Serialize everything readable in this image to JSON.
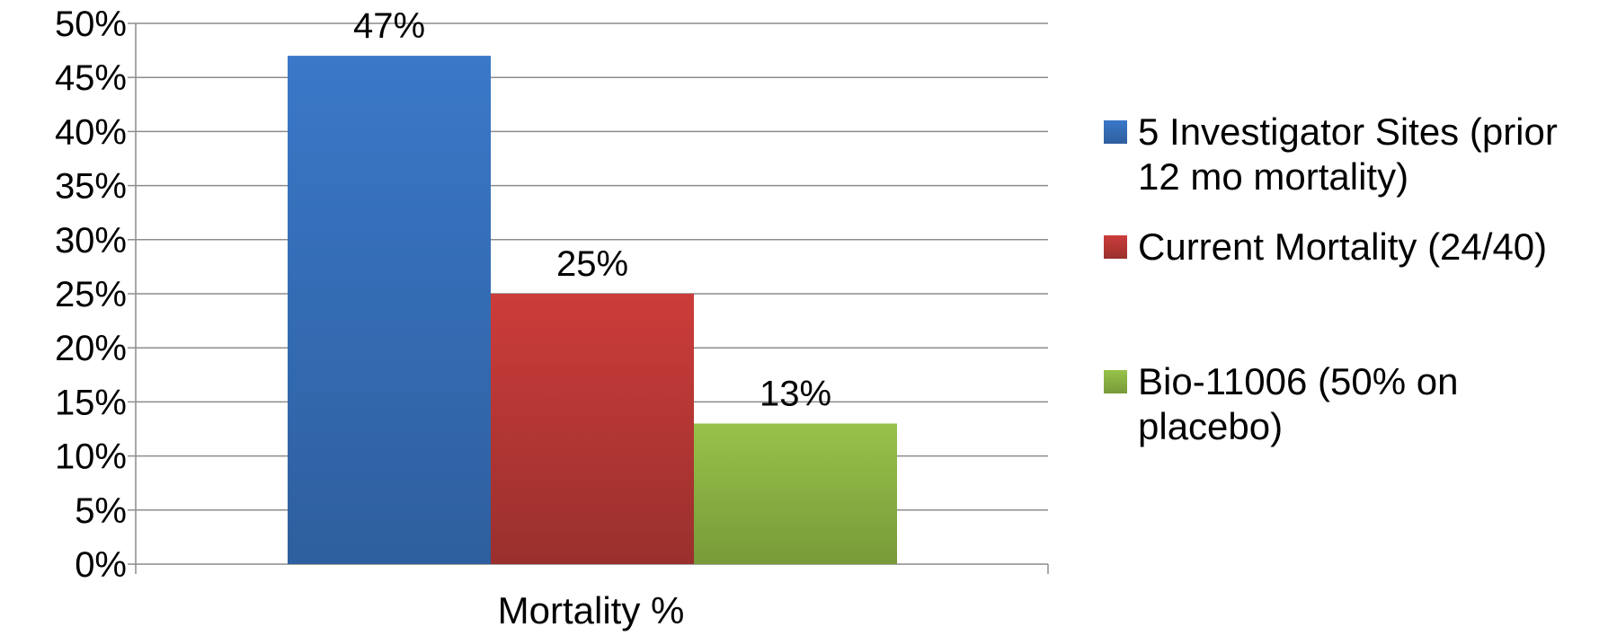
{
  "chart_data": {
    "type": "bar",
    "categories": [
      "Mortality %"
    ],
    "series": [
      {
        "name": "5 Investigator Sites (prior 12 mo mortality)",
        "values": [
          47
        ],
        "label": "47%",
        "color": "#3a78c8",
        "color_dark": "#2e5f9e"
      },
      {
        "name": "Current Mortality (24/40)",
        "values": [
          25
        ],
        "label": "25%",
        "color": "#cc3c3a",
        "color_dark": "#99302d"
      },
      {
        "name": "Bio-11006 (50% on placebo)",
        "values": [
          13
        ],
        "label": "13%",
        "color": "#97c24a",
        "color_dark": "#789a39"
      }
    ],
    "y_ticks": [
      0,
      5,
      10,
      15,
      20,
      25,
      30,
      35,
      40,
      45,
      50
    ],
    "y_tick_labels": [
      "0%",
      "5%",
      "10%",
      "15%",
      "20%",
      "25%",
      "30%",
      "35%",
      "40%",
      "45%",
      "50%"
    ],
    "ylim": [
      0,
      50
    ],
    "grid": true,
    "legend_position": "right",
    "title": "",
    "xlabel": "",
    "ylabel": ""
  }
}
